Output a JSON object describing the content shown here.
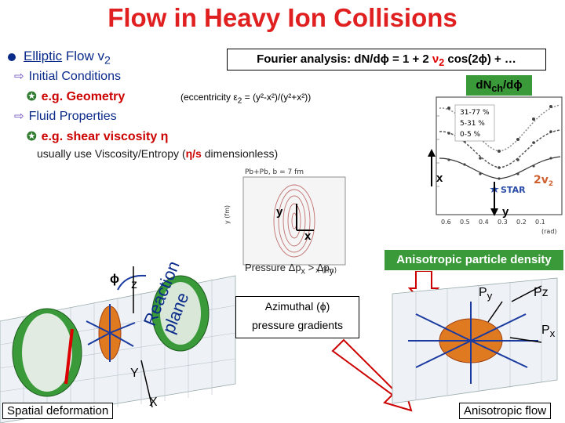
{
  "slide": {
    "title": "Flow in Heavy Ion Collisions",
    "elliptic_prefix": "Elliptic",
    "elliptic_suffix": " Flow v",
    "elliptic_sub": "2",
    "initial_conditions": "Initial Conditions",
    "geometry": "e.g. Geometry",
    "fluid_properties": "Fluid Properties",
    "shear_viscosity": "e.g.  shear viscosity η",
    "eccentricity": "(eccentricity ε",
    "eccentricity_sub": "2",
    "eccentricity_rest": " = (y²-x²)/(y²+x²))",
    "viscosity_pre": "usually use Viscosity/Entropy (",
    "viscosity_ratio": "η/s",
    "viscosity_post": " dimensionless)",
    "fourier_pre": "Fourier analysis: dN/dϕ = 1 + 2 ",
    "fourier_v": "ν",
    "fourier_sub": "2",
    "fourier_post": " cos(2ϕ) + …",
    "dn_label": "dN",
    "dn_sub": "ch",
    "dn_post": "/dϕ",
    "inset_title": "Pb+Pb, b = 7 fm",
    "inset_ylabel": "y (fm)",
    "inset_xlabel": "x (fm)",
    "plot_x_label": "x",
    "plot_y_label": "y",
    "star_label": "STAR",
    "v2_label": "2v",
    "v2_sub": "2",
    "centrality": [
      "31-77 %",
      "5-31 %",
      "0-5 %"
    ],
    "axis_label_x": "x",
    "axis_label_y_right": "y",
    "axis_label_y_center": "y",
    "pressure_pre": "Pressure Δp",
    "pressure_sub1": "x",
    "pressure_mid": " > Δp",
    "pressure_sub2": "y",
    "phi": "ϕ",
    "z_label": "z",
    "reaction_plane": "Reaction plane",
    "Y_label": "Y",
    "X_label": "X",
    "azimuthal_line1": "Azimuthal (ϕ)",
    "azimuthal_line2": "pressure gradients",
    "anisotropic_density": "Anisotropic particle density",
    "py_label": "P",
    "py_sub": "y",
    "pz_label": "Pz",
    "px_label": "P",
    "px_sub": "x",
    "spatial_deformation": "Spatial deformation",
    "anisotropic_flow": "Anisotropic flow",
    "tick_labels_right": [
      "0.6",
      "0.5",
      "0.4",
      "0.3",
      "0.2",
      "0.1"
    ],
    "rad_label": "(rad)"
  },
  "colors": {
    "title": "#e02020",
    "accent_green": "#3a9a3a",
    "accent_blue": "#0a2a8a",
    "accent_red": "#cc0000"
  }
}
